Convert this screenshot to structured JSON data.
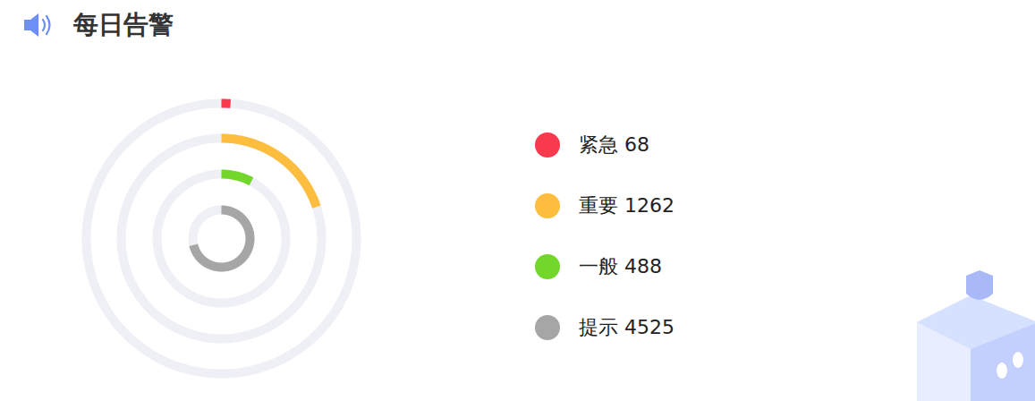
{
  "chart_data": {
    "type": "radial_bar",
    "title": "每日告警",
    "categories": [
      "紧急",
      "重要",
      "一般",
      "提示"
    ],
    "values": [
      68,
      1262,
      488,
      4525
    ],
    "colors": [
      "#f93a4e",
      "#fdbe3f",
      "#73d72b",
      "#a6a6a6"
    ],
    "legend": "right"
  }
}
